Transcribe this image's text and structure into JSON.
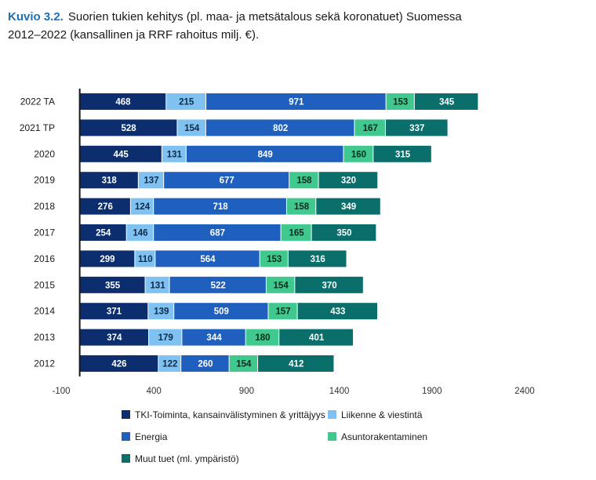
{
  "caption": {
    "number": "Kuvio 3.2.",
    "line1": "Suorien tukien kehitys (pl. maa- ja metsätalous sekä koronatuet) Suomessa",
    "line2": "2012–2022 (kansallinen ja RRF rahoitus milj. €)."
  },
  "colors": {
    "tki": "#0c2e6e",
    "liikenne": "#7fc2f2",
    "energia": "#1f5fbd",
    "asunto": "#3fc98e",
    "muut": "#0a6e6a"
  },
  "chart_data": {
    "type": "bar",
    "orientation": "horizontal",
    "stacked": true,
    "categories": [
      "2022 TA",
      "2021 TP",
      "2020",
      "2019",
      "2018",
      "2017",
      "2016",
      "2015",
      "2014",
      "2013",
      "2012"
    ],
    "series": [
      {
        "name": "TKI-Toiminta, kansainvälistyminen & yrittäjyys",
        "key": "tki",
        "values": [
          468,
          528,
          445,
          318,
          276,
          254,
          299,
          355,
          371,
          374,
          426
        ]
      },
      {
        "name": "Liikenne & viestintä",
        "key": "liikenne",
        "values": [
          215,
          154,
          131,
          137,
          124,
          146,
          110,
          131,
          139,
          179,
          122
        ]
      },
      {
        "name": "Energia",
        "key": "energia",
        "values": [
          971,
          802,
          849,
          677,
          718,
          687,
          564,
          522,
          509,
          344,
          260
        ]
      },
      {
        "name": "Asuntorakentaminen",
        "key": "asunto",
        "values": [
          153,
          167,
          160,
          158,
          158,
          165,
          153,
          154,
          157,
          180,
          154
        ]
      },
      {
        "name": "Muut tuet (ml. ympäristö)",
        "key": "muut",
        "values": [
          345,
          337,
          315,
          320,
          349,
          350,
          316,
          370,
          433,
          401,
          412
        ]
      }
    ],
    "xlim": [
      -100,
      2400
    ],
    "xticks": [
      -100,
      400,
      900,
      1400,
      1900,
      2400
    ],
    "xtick_labels": [
      "-100",
      "400",
      "900",
      "1400",
      "1900",
      "2400"
    ],
    "legend_position": "bottom",
    "grid": false
  }
}
